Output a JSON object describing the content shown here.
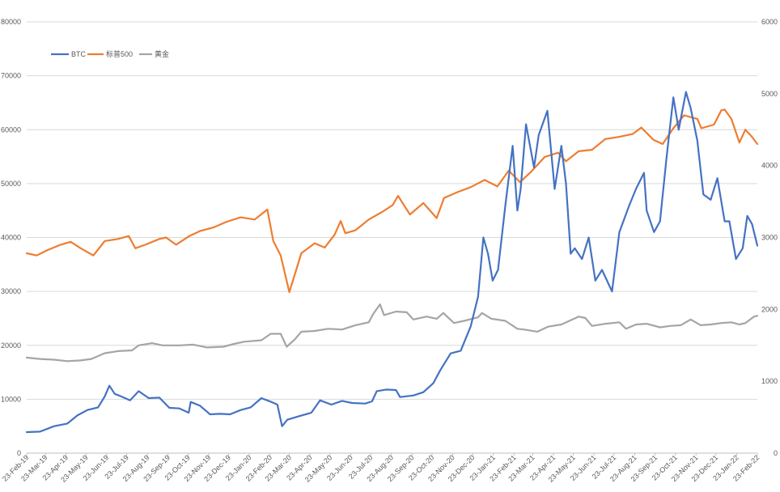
{
  "chart_data": {
    "type": "line",
    "title": "",
    "xlabel": "",
    "ylabel": "",
    "legend_position": "top-left",
    "grid": true,
    "x_start": "2019-02-23",
    "x_end": "2022-02-23",
    "x_ticks": [
      "23-Feb-19",
      "23-Mar-19",
      "23-Apr-19",
      "23-May-19",
      "23-Jun-19",
      "23-Jul-19",
      "23-Aug-19",
      "23-Sep-19",
      "23-Oct-19",
      "23-Nov-19",
      "23-Dec-19",
      "23-Jan-20",
      "23-Feb-20",
      "23-Mar-20",
      "23-Apr-20",
      "23-May-20",
      "23-Jun-20",
      "23-Jul-20",
      "23-Aug-20",
      "23-Sep-20",
      "23-Oct-20",
      "23-Nov-20",
      "23-Dec-20",
      "23-Jan-21",
      "23-Feb-21",
      "23-Mar-21",
      "23-Apr-21",
      "23-May-21",
      "23-Jun-21",
      "23-Jul-21",
      "23-Aug-21",
      "23-Sep-21",
      "23-Oct-21",
      "23-Nov-21",
      "23-Dec-21",
      "23-Jan-22",
      "23-Feb-22"
    ],
    "y_left": {
      "min": 0,
      "max": 80000,
      "ticks": [
        "0",
        "10000",
        "20000",
        "30000",
        "40000",
        "50000",
        "60000",
        "70000",
        "80000"
      ]
    },
    "y_right": {
      "min": 0,
      "max": 6000,
      "ticks": [
        "0",
        "1000",
        "2000",
        "3000",
        "4000",
        "5000",
        "6000"
      ]
    },
    "series": [
      {
        "name": "BTC",
        "axis": "left",
        "color": "#4472C4",
        "points": [
          [
            "2019-02-23",
            3900
          ],
          [
            "2019-03-15",
            4000
          ],
          [
            "2019-04-05",
            5000
          ],
          [
            "2019-04-25",
            5500
          ],
          [
            "2019-05-10",
            7000
          ],
          [
            "2019-05-25",
            8000
          ],
          [
            "2019-06-10",
            8500
          ],
          [
            "2019-06-20",
            10500
          ],
          [
            "2019-06-27",
            12500
          ],
          [
            "2019-07-05",
            11000
          ],
          [
            "2019-07-15",
            10500
          ],
          [
            "2019-07-28",
            9800
          ],
          [
            "2019-08-10",
            11500
          ],
          [
            "2019-08-25",
            10200
          ],
          [
            "2019-09-10",
            10300
          ],
          [
            "2019-09-25",
            8400
          ],
          [
            "2019-10-10",
            8300
          ],
          [
            "2019-10-24",
            7500
          ],
          [
            "2019-10-27",
            9500
          ],
          [
            "2019-11-10",
            8800
          ],
          [
            "2019-11-25",
            7200
          ],
          [
            "2019-12-10",
            7300
          ],
          [
            "2019-12-25",
            7200
          ],
          [
            "2020-01-10",
            8000
          ],
          [
            "2020-01-25",
            8500
          ],
          [
            "2020-02-10",
            10200
          ],
          [
            "2020-02-25",
            9500
          ],
          [
            "2020-03-05",
            9000
          ],
          [
            "2020-03-12",
            5000
          ],
          [
            "2020-03-20",
            6200
          ],
          [
            "2020-04-05",
            6800
          ],
          [
            "2020-04-25",
            7500
          ],
          [
            "2020-05-08",
            9800
          ],
          [
            "2020-05-25",
            9000
          ],
          [
            "2020-06-10",
            9700
          ],
          [
            "2020-06-25",
            9300
          ],
          [
            "2020-07-15",
            9200
          ],
          [
            "2020-07-25",
            9600
          ],
          [
            "2020-08-01",
            11500
          ],
          [
            "2020-08-15",
            11800
          ],
          [
            "2020-08-30",
            11700
          ],
          [
            "2020-09-05",
            10400
          ],
          [
            "2020-09-25",
            10700
          ],
          [
            "2020-10-10",
            11300
          ],
          [
            "2020-10-25",
            13000
          ],
          [
            "2020-11-05",
            15500
          ],
          [
            "2020-11-20",
            18500
          ],
          [
            "2020-12-05",
            19000
          ],
          [
            "2020-12-20",
            23500
          ],
          [
            "2020-12-31",
            29000
          ],
          [
            "2021-01-08",
            40000
          ],
          [
            "2021-01-15",
            37000
          ],
          [
            "2021-01-22",
            32000
          ],
          [
            "2021-01-30",
            34000
          ],
          [
            "2021-02-10",
            46000
          ],
          [
            "2021-02-21",
            57000
          ],
          [
            "2021-02-28",
            45000
          ],
          [
            "2021-03-05",
            49000
          ],
          [
            "2021-03-13",
            61000
          ],
          [
            "2021-03-25",
            53000
          ],
          [
            "2021-04-01",
            59000
          ],
          [
            "2021-04-14",
            63500
          ],
          [
            "2021-04-25",
            49000
          ],
          [
            "2021-05-05",
            57000
          ],
          [
            "2021-05-12",
            50000
          ],
          [
            "2021-05-19",
            37000
          ],
          [
            "2021-05-25",
            38000
          ],
          [
            "2021-06-05",
            36000
          ],
          [
            "2021-06-15",
            40000
          ],
          [
            "2021-06-25",
            32000
          ],
          [
            "2021-07-05",
            34000
          ],
          [
            "2021-07-20",
            30000
          ],
          [
            "2021-07-31",
            41000
          ],
          [
            "2021-08-15",
            46000
          ],
          [
            "2021-08-25",
            49000
          ],
          [
            "2021-09-06",
            52000
          ],
          [
            "2021-09-10",
            45000
          ],
          [
            "2021-09-21",
            41000
          ],
          [
            "2021-09-30",
            43000
          ],
          [
            "2021-10-10",
            55000
          ],
          [
            "2021-10-20",
            66000
          ],
          [
            "2021-10-28",
            60000
          ],
          [
            "2021-11-08",
            67000
          ],
          [
            "2021-11-15",
            64000
          ],
          [
            "2021-11-25",
            58000
          ],
          [
            "2021-12-04",
            48000
          ],
          [
            "2021-12-15",
            47000
          ],
          [
            "2021-12-25",
            51000
          ],
          [
            "2022-01-05",
            43000
          ],
          [
            "2022-01-12",
            43000
          ],
          [
            "2022-01-22",
            36000
          ],
          [
            "2022-02-01",
            38000
          ],
          [
            "2022-02-08",
            44000
          ],
          [
            "2022-02-15",
            42500
          ],
          [
            "2022-02-23",
            38500
          ]
        ]
      },
      {
        "name": "标普500",
        "axis": "right",
        "color": "#ED7D31",
        "points": [
          [
            "2019-02-23",
            2780
          ],
          [
            "2019-03-10",
            2750
          ],
          [
            "2019-03-25",
            2820
          ],
          [
            "2019-04-15",
            2900
          ],
          [
            "2019-04-30",
            2940
          ],
          [
            "2019-05-15",
            2850
          ],
          [
            "2019-06-03",
            2750
          ],
          [
            "2019-06-20",
            2950
          ],
          [
            "2019-07-10",
            2980
          ],
          [
            "2019-07-26",
            3020
          ],
          [
            "2019-08-05",
            2850
          ],
          [
            "2019-08-20",
            2900
          ],
          [
            "2019-09-10",
            2980
          ],
          [
            "2019-09-20",
            3000
          ],
          [
            "2019-10-05",
            2900
          ],
          [
            "2019-10-25",
            3020
          ],
          [
            "2019-11-10",
            3090
          ],
          [
            "2019-11-30",
            3140
          ],
          [
            "2019-12-20",
            3220
          ],
          [
            "2020-01-10",
            3280
          ],
          [
            "2020-01-31",
            3250
          ],
          [
            "2020-02-19",
            3390
          ],
          [
            "2020-02-28",
            2950
          ],
          [
            "2020-03-10",
            2750
          ],
          [
            "2020-03-23",
            2240
          ],
          [
            "2020-04-10",
            2780
          ],
          [
            "2020-04-30",
            2920
          ],
          [
            "2020-05-15",
            2860
          ],
          [
            "2020-05-30",
            3040
          ],
          [
            "2020-06-08",
            3230
          ],
          [
            "2020-06-15",
            3060
          ],
          [
            "2020-06-30",
            3100
          ],
          [
            "2020-07-20",
            3250
          ],
          [
            "2020-08-10",
            3360
          ],
          [
            "2020-08-25",
            3450
          ],
          [
            "2020-09-02",
            3580
          ],
          [
            "2020-09-20",
            3320
          ],
          [
            "2020-10-10",
            3480
          ],
          [
            "2020-10-30",
            3270
          ],
          [
            "2020-11-10",
            3550
          ],
          [
            "2020-11-30",
            3630
          ],
          [
            "2020-12-20",
            3700
          ],
          [
            "2021-01-10",
            3800
          ],
          [
            "2021-01-29",
            3710
          ],
          [
            "2021-02-15",
            3930
          ],
          [
            "2021-03-04",
            3770
          ],
          [
            "2021-03-20",
            3910
          ],
          [
            "2021-04-10",
            4120
          ],
          [
            "2021-04-30",
            4180
          ],
          [
            "2021-05-12",
            4060
          ],
          [
            "2021-05-31",
            4200
          ],
          [
            "2021-06-20",
            4220
          ],
          [
            "2021-07-10",
            4370
          ],
          [
            "2021-07-31",
            4400
          ],
          [
            "2021-08-20",
            4440
          ],
          [
            "2021-09-02",
            4530
          ],
          [
            "2021-09-20",
            4360
          ],
          [
            "2021-10-04",
            4300
          ],
          [
            "2021-10-20",
            4520
          ],
          [
            "2021-11-05",
            4700
          ],
          [
            "2021-11-25",
            4650
          ],
          [
            "2021-12-01",
            4520
          ],
          [
            "2021-12-20",
            4570
          ],
          [
            "2021-12-31",
            4770
          ],
          [
            "2022-01-05",
            4780
          ],
          [
            "2022-01-15",
            4650
          ],
          [
            "2022-01-27",
            4320
          ],
          [
            "2022-02-05",
            4500
          ],
          [
            "2022-02-15",
            4400
          ],
          [
            "2022-02-23",
            4300
          ]
        ]
      },
      {
        "name": "黄金",
        "axis": "right",
        "color": "#A5A5A5",
        "points": [
          [
            "2019-02-23",
            1330
          ],
          [
            "2019-03-15",
            1310
          ],
          [
            "2019-04-05",
            1300
          ],
          [
            "2019-04-25",
            1280
          ],
          [
            "2019-05-15",
            1290
          ],
          [
            "2019-05-31",
            1310
          ],
          [
            "2019-06-20",
            1390
          ],
          [
            "2019-07-10",
            1420
          ],
          [
            "2019-07-31",
            1430
          ],
          [
            "2019-08-10",
            1500
          ],
          [
            "2019-08-30",
            1530
          ],
          [
            "2019-09-15",
            1500
          ],
          [
            "2019-10-10",
            1500
          ],
          [
            "2019-10-31",
            1510
          ],
          [
            "2019-11-20",
            1470
          ],
          [
            "2019-12-15",
            1480
          ],
          [
            "2019-12-31",
            1520
          ],
          [
            "2020-01-15",
            1550
          ],
          [
            "2020-02-10",
            1570
          ],
          [
            "2020-02-24",
            1660
          ],
          [
            "2020-03-10",
            1660
          ],
          [
            "2020-03-19",
            1480
          ],
          [
            "2020-03-31",
            1580
          ],
          [
            "2020-04-10",
            1690
          ],
          [
            "2020-04-30",
            1700
          ],
          [
            "2020-05-20",
            1730
          ],
          [
            "2020-06-10",
            1720
          ],
          [
            "2020-06-30",
            1780
          ],
          [
            "2020-07-20",
            1820
          ],
          [
            "2020-07-27",
            1940
          ],
          [
            "2020-08-06",
            2070
          ],
          [
            "2020-08-12",
            1920
          ],
          [
            "2020-08-30",
            1970
          ],
          [
            "2020-09-15",
            1960
          ],
          [
            "2020-09-25",
            1860
          ],
          [
            "2020-10-15",
            1900
          ],
          [
            "2020-10-30",
            1870
          ],
          [
            "2020-11-09",
            1950
          ],
          [
            "2020-11-25",
            1810
          ],
          [
            "2020-12-10",
            1840
          ],
          [
            "2020-12-31",
            1890
          ],
          [
            "2021-01-06",
            1950
          ],
          [
            "2021-01-20",
            1870
          ],
          [
            "2021-02-10",
            1840
          ],
          [
            "2021-02-28",
            1730
          ],
          [
            "2021-03-10",
            1720
          ],
          [
            "2021-03-30",
            1690
          ],
          [
            "2021-04-15",
            1760
          ],
          [
            "2021-05-05",
            1790
          ],
          [
            "2021-05-31",
            1900
          ],
          [
            "2021-06-10",
            1880
          ],
          [
            "2021-06-20",
            1770
          ],
          [
            "2021-07-10",
            1800
          ],
          [
            "2021-07-31",
            1820
          ],
          [
            "2021-08-10",
            1730
          ],
          [
            "2021-08-25",
            1790
          ],
          [
            "2021-09-10",
            1800
          ],
          [
            "2021-09-30",
            1750
          ],
          [
            "2021-10-15",
            1770
          ],
          [
            "2021-10-31",
            1780
          ],
          [
            "2021-11-15",
            1860
          ],
          [
            "2021-11-30",
            1780
          ],
          [
            "2021-12-15",
            1790
          ],
          [
            "2021-12-31",
            1810
          ],
          [
            "2022-01-15",
            1820
          ],
          [
            "2022-01-27",
            1790
          ],
          [
            "2022-02-05",
            1810
          ],
          [
            "2022-02-18",
            1900
          ],
          [
            "2022-02-23",
            1910
          ]
        ]
      }
    ]
  }
}
